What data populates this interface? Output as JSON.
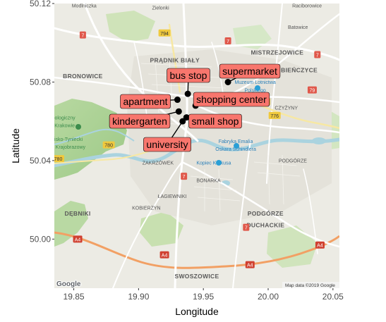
{
  "chart_data": {
    "type": "scatter",
    "title": "",
    "xlabel": "Longitude",
    "ylabel": "Latitude",
    "xlim": [
      19.835,
      20.055
    ],
    "ylim": [
      49.975,
      50.12
    ],
    "x_ticks": [
      19.85,
      19.9,
      19.95,
      20.0,
      20.05
    ],
    "x_tick_labels": [
      "19.85",
      "19.90",
      "19.95",
      "20.00",
      "20.05"
    ],
    "y_ticks": [
      50.0,
      50.04,
      50.08,
      50.12
    ],
    "y_tick_labels": [
      "50.00",
      "50.04",
      "50.08",
      "50.12"
    ],
    "grid": false,
    "background": "google-roadmap",
    "points": [
      {
        "label": "apartment",
        "lon": 19.93,
        "lat": 50.071
      },
      {
        "label": "bus stop",
        "lon": 19.938,
        "lat": 50.074
      },
      {
        "label": "supermarket",
        "lon": 19.969,
        "lat": 50.08
      },
      {
        "label": "shopping center",
        "lon": 19.944,
        "lat": 50.068
      },
      {
        "label": "kindergarten",
        "lon": 19.931,
        "lat": 50.065
      },
      {
        "label": "small shop",
        "lon": 19.937,
        "lat": 50.062
      },
      {
        "label": "university",
        "lon": 19.934,
        "lat": 50.06
      }
    ],
    "point_color": "#000000",
    "label_fill": "#f8766d"
  },
  "map": {
    "logo": "Google",
    "attribution": "Map data ©2019 Google",
    "place_labels": [
      {
        "text": "Modlniczka",
        "lon": 19.858,
        "lat": 50.118,
        "style": "small"
      },
      {
        "text": "Zielonki",
        "lon": 19.917,
        "lat": 50.117,
        "style": "small"
      },
      {
        "text": "Raciborowice",
        "lon": 20.03,
        "lat": 50.118,
        "style": "small"
      },
      {
        "text": "Batowice",
        "lon": 20.023,
        "lat": 50.107,
        "style": "small"
      },
      {
        "text": "PRĄDNIK BIAŁY",
        "lon": 19.928,
        "lat": 50.09,
        "style": "big"
      },
      {
        "text": "MISTRZEJOWICE",
        "lon": 20.007,
        "lat": 50.094,
        "style": "big"
      },
      {
        "text": "BRONOWICE",
        "lon": 19.857,
        "lat": 50.082,
        "style": "big"
      },
      {
        "text": "BIEŃCZYCE",
        "lon": 20.024,
        "lat": 50.085,
        "style": "big"
      },
      {
        "text": "ZAKRZÓWEK",
        "lon": 19.915,
        "lat": 50.038,
        "style": "small"
      },
      {
        "text": "BONARKA",
        "lon": 19.954,
        "lat": 50.029,
        "style": "small"
      },
      {
        "text": "ŁAGIEWNIKI",
        "lon": 19.926,
        "lat": 50.021,
        "style": "small"
      },
      {
        "text": "DĘBNIKI",
        "lon": 19.853,
        "lat": 50.012,
        "style": "big"
      },
      {
        "text": "PODGÓRZE",
        "lon": 19.998,
        "lat": 50.012,
        "style": "big"
      },
      {
        "text": "DUCHACKIE",
        "lon": 19.998,
        "lat": 50.006,
        "style": "big"
      },
      {
        "text": "KOBIERZYN",
        "lon": 19.906,
        "lat": 50.015,
        "style": "small"
      },
      {
        "text": "SWOSZOWICE",
        "lon": 19.945,
        "lat": 49.98,
        "style": "big"
      },
      {
        "text": "PODGÓRZE",
        "lon": 20.019,
        "lat": 50.039,
        "style": "small"
      },
      {
        "text": "CZYŻYNY",
        "lon": 20.014,
        "lat": 50.066,
        "style": "small"
      },
      {
        "text": "Muzeum Lotnictwa",
        "lon": 19.99,
        "lat": 50.079,
        "style": "blue"
      },
      {
        "text": "Polskiego",
        "lon": 19.99,
        "lat": 50.075,
        "style": "blue"
      },
      {
        "text": "Fabryka Emalia",
        "lon": 19.975,
        "lat": 50.049,
        "style": "blue"
      },
      {
        "text": "Oskara Schindlera",
        "lon": 19.975,
        "lat": 50.045,
        "style": "blue"
      },
      {
        "text": "Kopiec Krakusa",
        "lon": 19.958,
        "lat": 50.038,
        "style": "blue"
      },
      {
        "text": "Bielańsko-Tyniecki",
        "lon": 19.841,
        "lat": 50.05,
        "style": "green"
      },
      {
        "text": "Park Krajobrazowy",
        "lon": 19.843,
        "lat": 50.046,
        "style": "green"
      },
      {
        "text": "Zoologiczny",
        "lon": 19.841,
        "lat": 50.061,
        "style": "green"
      },
      {
        "text": "Krakowie",
        "lon": 19.843,
        "lat": 50.057,
        "style": "green"
      }
    ],
    "road_shields": [
      {
        "text": "7",
        "lon": 19.857,
        "lat": 50.104,
        "color": "#e0584b"
      },
      {
        "text": "794",
        "lon": 19.92,
        "lat": 50.105,
        "color": "#f0c93d"
      },
      {
        "text": "7",
        "lon": 19.969,
        "lat": 50.101,
        "color": "#e0584b"
      },
      {
        "text": "7",
        "lon": 20.038,
        "lat": 50.094,
        "color": "#e0584b"
      },
      {
        "text": "79",
        "lon": 20.034,
        "lat": 50.076,
        "color": "#e0584b"
      },
      {
        "text": "776",
        "lon": 19.997,
        "lat": 50.07,
        "color": "#f0c93d"
      },
      {
        "text": "776",
        "lon": 20.005,
        "lat": 50.063,
        "color": "#f0c93d"
      },
      {
        "text": "780",
        "lon": 19.877,
        "lat": 50.048,
        "color": "#f0c93d"
      },
      {
        "text": "780",
        "lon": 19.838,
        "lat": 50.041,
        "color": "#f0c93d"
      },
      {
        "text": "7",
        "lon": 19.935,
        "lat": 50.032,
        "color": "#e0584b"
      },
      {
        "text": "A4",
        "lon": 19.853,
        "lat": 50.0,
        "color": "#d04030"
      },
      {
        "text": "7",
        "lon": 19.983,
        "lat": 50.006,
        "color": "#e0584b"
      },
      {
        "text": "A4",
        "lon": 19.986,
        "lat": 49.987,
        "color": "#d04030"
      },
      {
        "text": "A4",
        "lon": 20.04,
        "lat": 49.997,
        "color": "#d04030"
      },
      {
        "text": "A4",
        "lon": 19.92,
        "lat": 49.992,
        "color": "#d04030"
      }
    ]
  }
}
